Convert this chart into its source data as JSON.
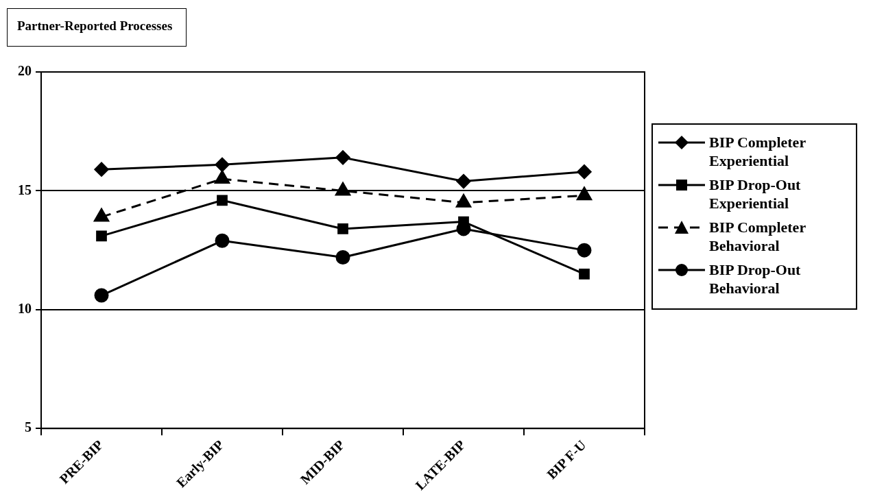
{
  "chart_data": {
    "type": "line",
    "title": "Partner-Reported Processes",
    "categories": [
      "PRE-BIP",
      "Early-BIP",
      "MID-BIP",
      "LATE-BIP",
      "BIP F-U"
    ],
    "series": [
      {
        "name": "BIP Completer Experiential",
        "color": "#000000",
        "marker": "diamond",
        "line_style": "solid",
        "values": [
          15.9,
          16.1,
          16.4,
          15.4,
          15.8
        ]
      },
      {
        "name": "BIP Drop-Out Experiential",
        "color": "#000000",
        "marker": "square",
        "line_style": "solid",
        "values": [
          13.1,
          14.6,
          13.4,
          13.7,
          11.5
        ]
      },
      {
        "name": "BIP Completer Behavioral",
        "color": "#000000",
        "marker": "triangle",
        "line_style": "dashed",
        "values": [
          13.9,
          15.5,
          15.0,
          14.5,
          14.8
        ]
      },
      {
        "name": "BIP Drop-Out Behavioral",
        "color": "#000000",
        "marker": "circle",
        "line_style": "solid",
        "values": [
          10.6,
          12.9,
          12.2,
          13.4,
          12.5
        ]
      }
    ],
    "ylim": [
      5,
      20
    ],
    "yticks": [
      5,
      10,
      15,
      20
    ],
    "grid": "y",
    "legend": "right"
  }
}
